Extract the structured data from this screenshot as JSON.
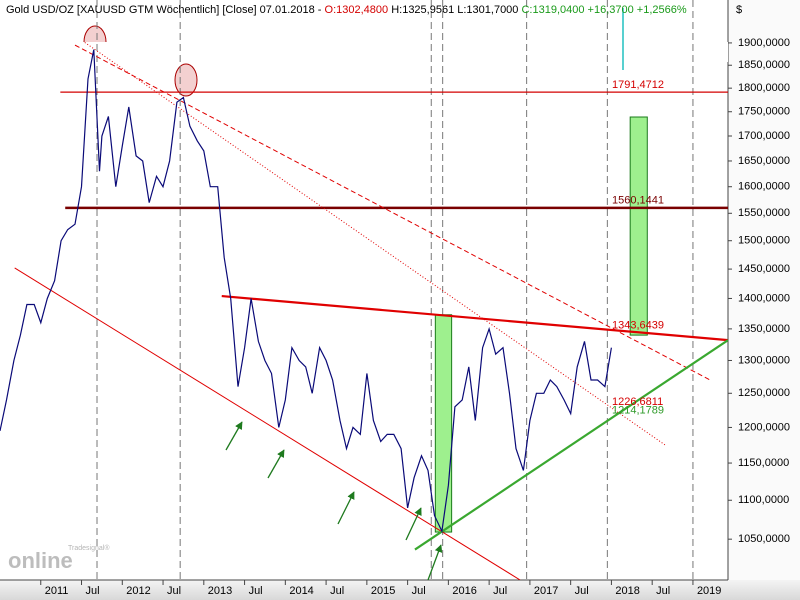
{
  "chart_data": {
    "type": "line",
    "title": "Gold USD/OZ [XAUUSD GTM  Wöchentlich] [Close] 07.01.2018 - ",
    "open": "O:1302,4800",
    "high_low": " H:1325,9561 L:1301,7000 ",
    "close": "C:1319,0400 +16,3700 +1,2566%",
    "currency": "$",
    "logo": {
      "top": "Tradesignal®",
      "main": "online"
    },
    "log_scale": true,
    "color": "#0a0a78",
    "xlim": [
      2010.5,
      2019.43
    ],
    "ylim": [
      1000,
      2000
    ],
    "xticks": [
      {
        "value": 2011,
        "label": "2011"
      },
      {
        "value": 2011.5,
        "label": "Jul"
      },
      {
        "value": 2012,
        "label": "2012"
      },
      {
        "value": 2012.5,
        "label": "Jul"
      },
      {
        "value": 2013,
        "label": "2013"
      },
      {
        "value": 2013.5,
        "label": "Jul"
      },
      {
        "value": 2014,
        "label": "2014"
      },
      {
        "value": 2014.5,
        "label": "Jul"
      },
      {
        "value": 2015,
        "label": "2015"
      },
      {
        "value": 2015.5,
        "label": "Jul"
      },
      {
        "value": 2016,
        "label": "2016"
      },
      {
        "value": 2016.5,
        "label": "Jul"
      },
      {
        "value": 2017,
        "label": "2017"
      },
      {
        "value": 2017.5,
        "label": "Jul"
      },
      {
        "value": 2018,
        "label": "2018"
      },
      {
        "value": 2018.5,
        "label": "Jul"
      },
      {
        "value": 2019,
        "label": "2019"
      }
    ],
    "yticks": [
      {
        "value": 1050,
        "label": "1050,0000"
      },
      {
        "value": 1100,
        "label": "1100,0000"
      },
      {
        "value": 1150,
        "label": "1150,0000"
      },
      {
        "value": 1200,
        "label": "1200,0000"
      },
      {
        "value": 1250,
        "label": "1250,0000"
      },
      {
        "value": 1300,
        "label": "1300,0000"
      },
      {
        "value": 1350,
        "label": "1350,0000"
      },
      {
        "value": 1400,
        "label": "1400,0000"
      },
      {
        "value": 1450,
        "label": "1450,0000"
      },
      {
        "value": 1500,
        "label": "1500,0000"
      },
      {
        "value": 1550,
        "label": "1550,0000"
      },
      {
        "value": 1600,
        "label": "1600,0000"
      },
      {
        "value": 1650,
        "label": "1650,0000"
      },
      {
        "value": 1700,
        "label": "1700,0000"
      },
      {
        "value": 1750,
        "label": "1750,0000"
      },
      {
        "value": 1800,
        "label": "1800,0000"
      },
      {
        "value": 1850,
        "label": "1850,0000"
      },
      {
        "value": 1900,
        "label": "1900,0000"
      }
    ],
    "vlines": [
      2011.69,
      2012.71,
      2015.79,
      2015.93,
      2016.96,
      2017.95,
      2019.0
    ],
    "x": [
      2010.5,
      2010.58,
      2010.67,
      2010.75,
      2010.83,
      2010.92,
      2011.0,
      2011.08,
      2011.17,
      2011.25,
      2011.33,
      2011.42,
      2011.5,
      2011.58,
      2011.65,
      2011.72,
      2011.75,
      2011.83,
      2011.92,
      2012.0,
      2012.08,
      2012.17,
      2012.25,
      2012.33,
      2012.42,
      2012.5,
      2012.58,
      2012.67,
      2012.75,
      2012.83,
      2012.92,
      2013.0,
      2013.08,
      2013.17,
      2013.25,
      2013.33,
      2013.42,
      2013.5,
      2013.58,
      2013.67,
      2013.75,
      2013.83,
      2013.92,
      2014.0,
      2014.08,
      2014.17,
      2014.25,
      2014.33,
      2014.42,
      2014.5,
      2014.58,
      2014.67,
      2014.75,
      2014.83,
      2014.92,
      2015.0,
      2015.08,
      2015.17,
      2015.25,
      2015.33,
      2015.42,
      2015.5,
      2015.58,
      2015.67,
      2015.75,
      2015.83,
      2015.92,
      2016.0,
      2016.08,
      2016.17,
      2016.25,
      2016.33,
      2016.42,
      2016.5,
      2016.58,
      2016.67,
      2016.75,
      2016.83,
      2016.92,
      2017.0,
      2017.08,
      2017.17,
      2017.25,
      2017.33,
      2017.42,
      2017.5,
      2017.58,
      2017.67,
      2017.75,
      2017.83,
      2017.92,
      2018.0
    ],
    "values": [
      1195,
      1240,
      1300,
      1340,
      1390,
      1390,
      1360,
      1400,
      1430,
      1500,
      1520,
      1530,
      1600,
      1820,
      1885,
      1630,
      1700,
      1740,
      1600,
      1680,
      1760,
      1660,
      1650,
      1570,
      1620,
      1600,
      1650,
      1770,
      1780,
      1720,
      1690,
      1670,
      1600,
      1600,
      1470,
      1400,
      1260,
      1320,
      1400,
      1330,
      1300,
      1280,
      1200,
      1240,
      1320,
      1300,
      1290,
      1250,
      1320,
      1300,
      1270,
      1210,
      1170,
      1200,
      1190,
      1280,
      1210,
      1180,
      1190,
      1190,
      1170,
      1090,
      1130,
      1160,
      1140,
      1080,
      1060,
      1120,
      1230,
      1240,
      1290,
      1210,
      1320,
      1350,
      1310,
      1320,
      1250,
      1170,
      1140,
      1210,
      1250,
      1250,
      1270,
      1260,
      1240,
      1220,
      1290,
      1330,
      1270,
      1270,
      1260,
      1320
    ],
    "levels": [
      {
        "value": 1791.4712,
        "label": "1791,4712",
        "color": "#d40000",
        "width": 1.2,
        "from": 2011.24
      },
      {
        "value": 1560.1441,
        "label": "1560,1441",
        "color": "#7a0000",
        "width": 2.5,
        "from": 2011.3
      }
    ],
    "trendlines": [
      {
        "x": [
          2013.22,
          2019.43
        ],
        "values": [
          1404,
          1332
        ],
        "color": "#e00000",
        "width": 2.2,
        "dash": ""
      },
      {
        "x": [
          2011.54,
          2018.66
        ],
        "values": [
          1901,
          1175
        ],
        "color": "#e00000",
        "width": 1,
        "dash": "1,2"
      },
      {
        "x": [
          2011.42,
          2019.21
        ],
        "values": [
          1895,
          1270
        ],
        "color": "#e00000",
        "width": 1,
        "dash": "5,3"
      },
      {
        "x": [
          2010.68,
          2016.88
        ],
        "values": [
          1452,
          1000
        ],
        "color": "#e00000",
        "width": 1,
        "dash": ""
      },
      {
        "x": [
          2015.59,
          2019.43
        ],
        "values": [
          1037,
          1332
        ],
        "color": "#3aa830",
        "width": 2.2,
        "dash": ""
      }
    ],
    "price_labels": [
      {
        "value": 1343.6439,
        "label": "1343,6439",
        "color": "#d40000"
      },
      {
        "value": 1226.6811,
        "label": "1226,6811",
        "color": "#d40000"
      },
      {
        "value": 1214.1789,
        "label": "1214,1789",
        "color": "#2e9a28"
      }
    ],
    "zones": [
      {
        "x": [
          2015.84,
          2016.04
        ],
        "values": [
          1059,
          1373
        ]
      },
      {
        "x": [
          2018.23,
          2018.44
        ],
        "values": [
          1340,
          1739
        ]
      }
    ]
  }
}
